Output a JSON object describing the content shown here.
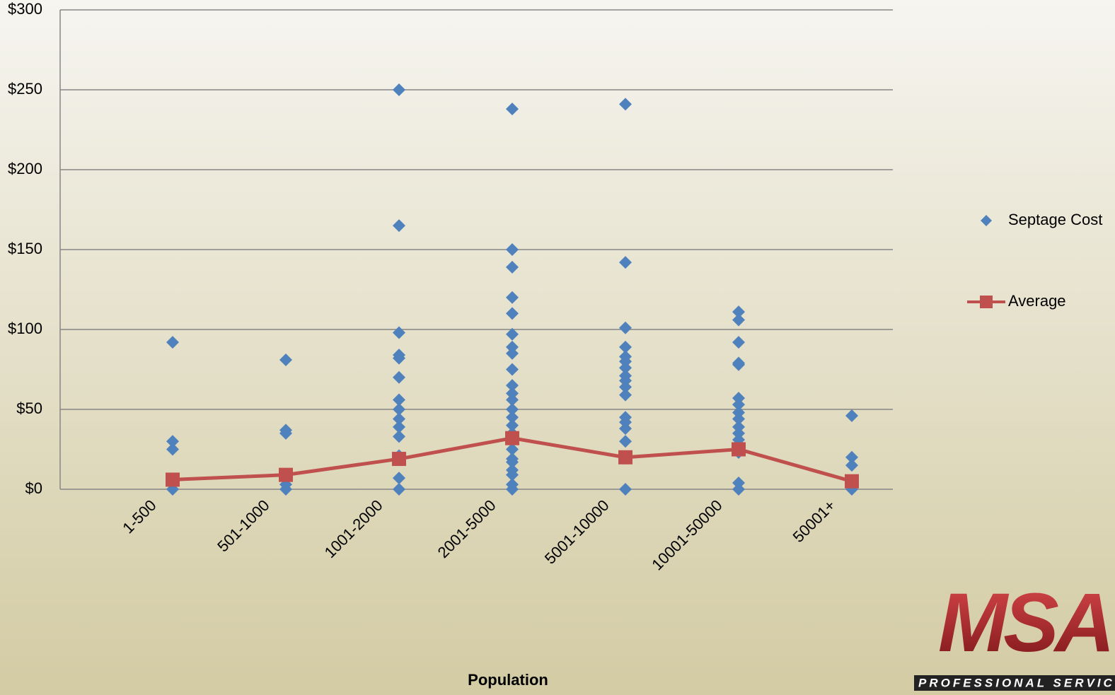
{
  "chart_data": {
    "type": "strip_line",
    "x_label": "Population",
    "categories": [
      "1-500",
      "501-1000",
      "1001-2000",
      "2001-5000",
      "5001-10000",
      "10001-50000",
      "50001+"
    ],
    "series": [
      {
        "name": "Septage Cost",
        "color": "#4f81bd",
        "values": [
          [
            92,
            30,
            25,
            0
          ],
          [
            81,
            37,
            35,
            3,
            0
          ],
          [
            250,
            165,
            98,
            84,
            82,
            70,
            56,
            50,
            44,
            39,
            33,
            21,
            7,
            0
          ],
          [
            238,
            150,
            139,
            120,
            110,
            97,
            89,
            85,
            75,
            65,
            60,
            56,
            50,
            45,
            40,
            35,
            31,
            25,
            19,
            17,
            12,
            9,
            3,
            0
          ],
          [
            241,
            142,
            101,
            89,
            83,
            80,
            76,
            71,
            68,
            64,
            59,
            45,
            42,
            38,
            30,
            0
          ],
          [
            111,
            106,
            92,
            79,
            78,
            57,
            53,
            48,
            44,
            39,
            35,
            31,
            28,
            23,
            4,
            0
          ],
          [
            46,
            20,
            15,
            0
          ]
        ]
      },
      {
        "name": "Average",
        "color": "#c0504d",
        "values": [
          6,
          9,
          19,
          32,
          20,
          25,
          5
        ]
      }
    ],
    "ylim": [
      0,
      300
    ],
    "yticks": [
      {
        "value": 0,
        "label": "$0"
      },
      {
        "value": 50,
        "label": "$50"
      },
      {
        "value": 100,
        "label": "$100"
      },
      {
        "value": 150,
        "label": "$150"
      },
      {
        "value": 200,
        "label": "$200"
      },
      {
        "value": 250,
        "label": "$250"
      },
      {
        "value": 300,
        "label": "$300"
      }
    ],
    "grid": true
  },
  "logo": {
    "name": "MSA",
    "tagline": "PROFESSIONAL SERVICES"
  }
}
